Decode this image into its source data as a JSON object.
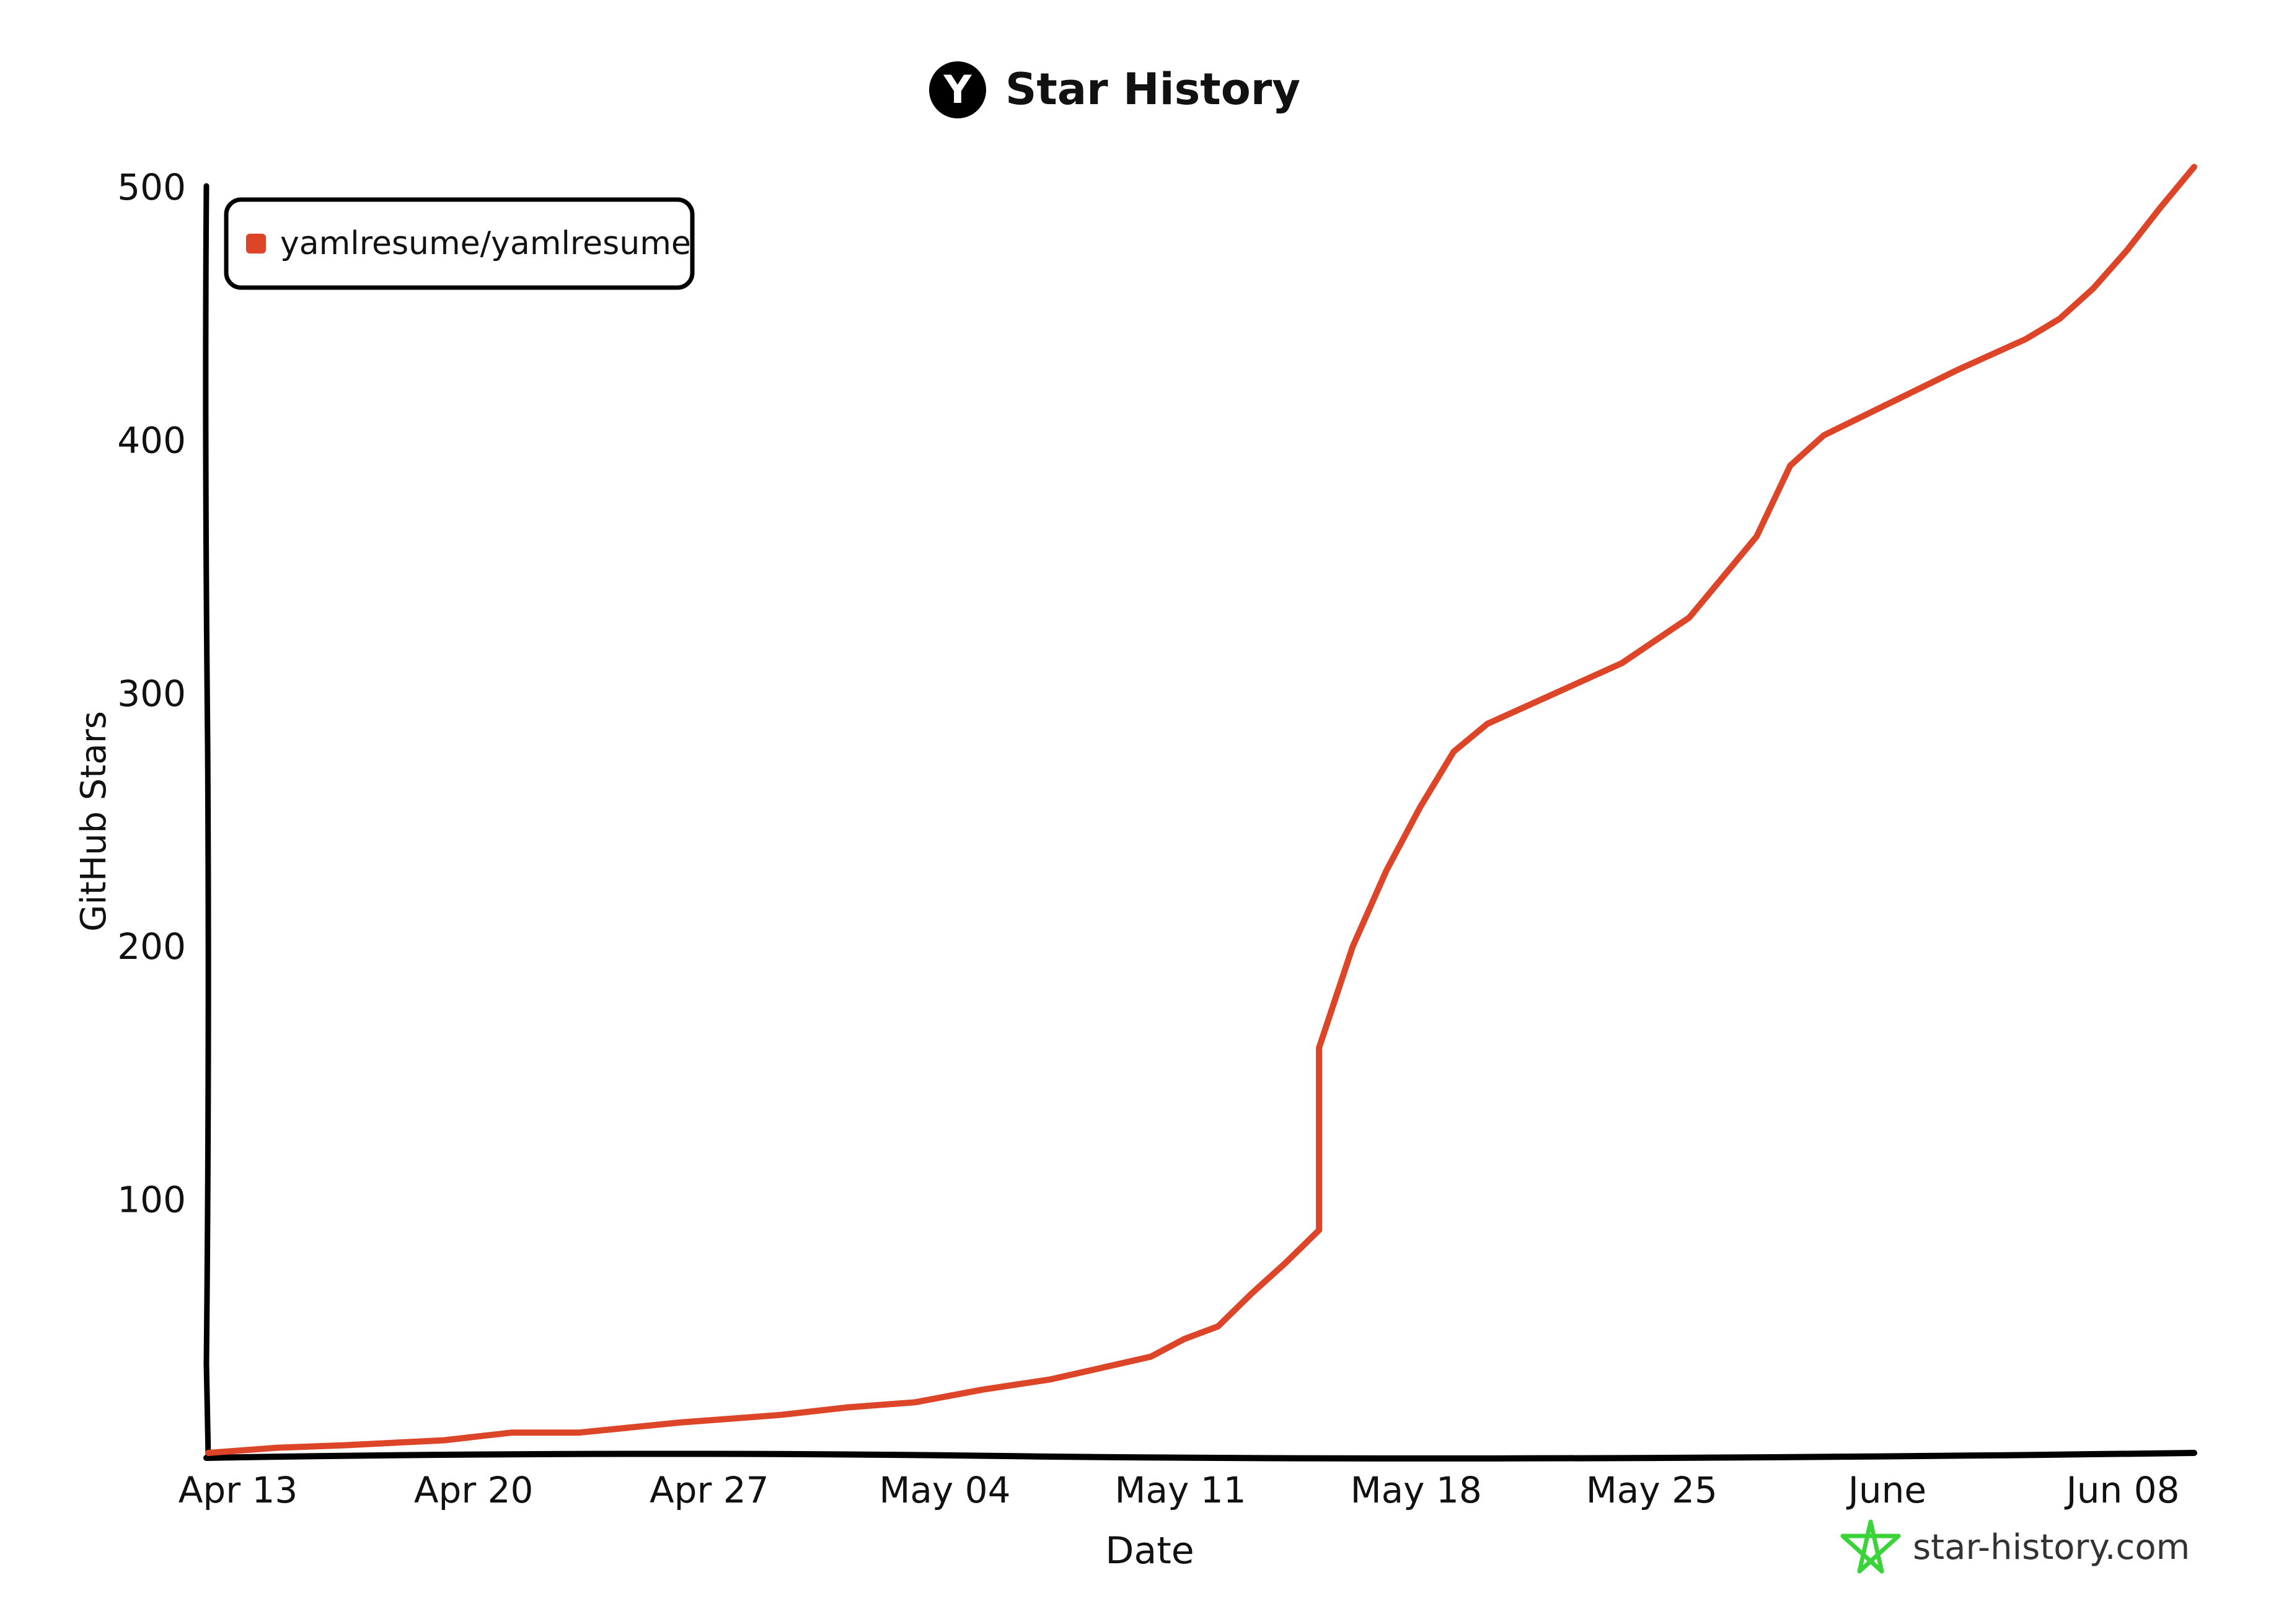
{
  "header": {
    "logo_letter": "Y",
    "title": "Star History"
  },
  "watermark": {
    "text": "star-history.com",
    "icon": "star-outline-icon",
    "icon_color": "#3ad43a"
  },
  "chart_data": {
    "type": "line",
    "title": "Star History",
    "xlabel": "Date",
    "ylabel": "GitHub Stars",
    "x_ticks": [
      "Apr 13",
      "Apr 20",
      "Apr 27",
      "May 04",
      "May 11",
      "May 18",
      "May 25",
      "June",
      "Jun 08"
    ],
    "y_ticks": [
      "100",
      "200",
      "300",
      "400",
      "500"
    ],
    "ylim": [
      0,
      500
    ],
    "xlim": [
      "2025-04-13",
      "2025-06-11"
    ],
    "grid": false,
    "legend_position": "top-left",
    "series": [
      {
        "name": "yamlresume/yamlresume",
        "color": "#dd4528",
        "points": [
          {
            "x": "2025-04-13",
            "y": 0
          },
          {
            "x": "2025-04-15",
            "y": 2
          },
          {
            "x": "2025-04-17",
            "y": 3
          },
          {
            "x": "2025-04-20",
            "y": 5
          },
          {
            "x": "2025-04-22",
            "y": 8
          },
          {
            "x": "2025-04-24",
            "y": 8
          },
          {
            "x": "2025-04-27",
            "y": 12
          },
          {
            "x": "2025-04-30",
            "y": 15
          },
          {
            "x": "2025-05-02",
            "y": 18
          },
          {
            "x": "2025-05-04",
            "y": 20
          },
          {
            "x": "2025-05-06",
            "y": 25
          },
          {
            "x": "2025-05-08",
            "y": 29
          },
          {
            "x": "2025-05-10",
            "y": 35
          },
          {
            "x": "2025-05-11",
            "y": 38
          },
          {
            "x": "2025-05-12",
            "y": 45
          },
          {
            "x": "2025-05-13",
            "y": 50
          },
          {
            "x": "2025-05-14",
            "y": 63
          },
          {
            "x": "2025-05-15",
            "y": 75
          },
          {
            "x": "2025-05-16",
            "y": 88
          },
          {
            "x": "2025-05-16",
            "y": 160
          },
          {
            "x": "2025-05-17",
            "y": 200
          },
          {
            "x": "2025-05-18",
            "y": 230
          },
          {
            "x": "2025-05-19",
            "y": 255
          },
          {
            "x": "2025-05-20",
            "y": 277
          },
          {
            "x": "2025-05-21",
            "y": 288
          },
          {
            "x": "2025-05-23",
            "y": 300
          },
          {
            "x": "2025-05-25",
            "y": 312
          },
          {
            "x": "2025-05-27",
            "y": 330
          },
          {
            "x": "2025-05-29",
            "y": 362
          },
          {
            "x": "2025-05-30",
            "y": 390
          },
          {
            "x": "2025-05-31",
            "y": 402
          },
          {
            "x": "2025-06-02",
            "y": 415
          },
          {
            "x": "2025-06-04",
            "y": 428
          },
          {
            "x": "2025-06-06",
            "y": 440
          },
          {
            "x": "2025-06-07",
            "y": 448
          },
          {
            "x": "2025-06-08",
            "y": 460
          },
          {
            "x": "2025-06-09",
            "y": 475
          },
          {
            "x": "2025-06-10",
            "y": 492
          },
          {
            "x": "2025-06-11",
            "y": 508
          }
        ]
      }
    ]
  }
}
